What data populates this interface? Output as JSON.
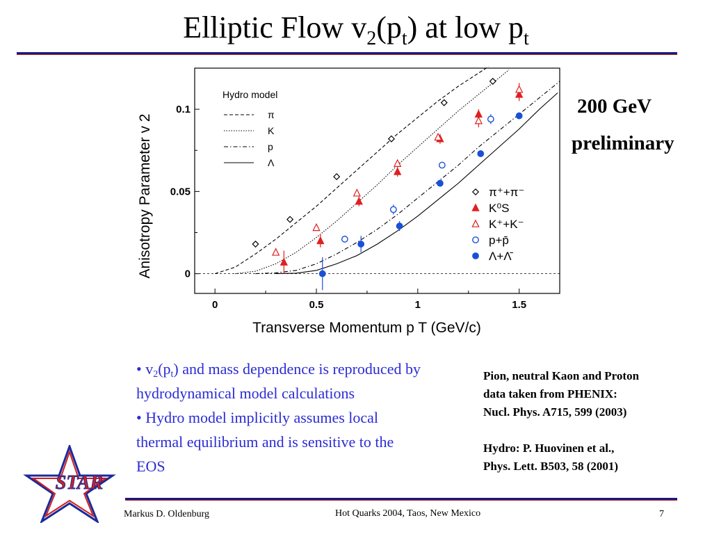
{
  "slide": {
    "title_parts": [
      "Elliptic Flow v",
      "2",
      "(p",
      "t",
      ") at low p",
      "t"
    ],
    "energy": "200 GeV",
    "status": "preliminary",
    "bullets": [
      {
        "pre": "• v",
        "sub1": "2",
        "mid": "(p",
        "sub2": "t",
        "post": ") and mass dependence is reproduced by hydrodynamical model calculations"
      },
      {
        "text": "• Hydro model implicitly assumes local thermal equilibrium and is sensitive to the EOS"
      }
    ],
    "refs": [
      "Pion, neutral Kaon and Proton",
      "data taken from PHENIX:",
      "Nucl. Phys. A715, 599 (2003)",
      "Hydro: P. Huovinen et al.,",
      "Phys. Lett. B503, 58 (2001)"
    ],
    "footer": {
      "author": "Markus D. Oldenburg",
      "event": "Hot Quarks 2004, Taos, New Mexico",
      "page": "7"
    },
    "logo_text": "STAR",
    "colors": {
      "blue_text": "#2b2bd6",
      "rule_blue": "#1a1a7a",
      "rule_red": "#c02020",
      "data_red": "#e02020",
      "data_blue": "#1a4fd8"
    }
  },
  "chart_data": {
    "type": "scatter",
    "xlabel": "Transverse Momentum p T (GeV/c)",
    "ylabel": "Anisotropy Parameter v 2",
    "xlim": [
      -0.1,
      1.7
    ],
    "ylim": [
      -0.012,
      0.125
    ],
    "x_ticks": [
      0,
      0.5,
      1,
      1.5
    ],
    "x_tick_labels": [
      "0",
      "0.5",
      "1",
      "1.5"
    ],
    "y_ticks": [
      0,
      0.05,
      0.1
    ],
    "y_tick_labels": [
      "0",
      "0.05",
      "0.1"
    ],
    "hydro_legend_title": "Hydro model",
    "hydro_curves": [
      {
        "name": "π",
        "style": "dashed",
        "x": [
          0,
          0.1,
          0.2,
          0.3,
          0.4,
          0.5,
          0.6,
          0.7,
          0.8,
          0.9,
          1.0,
          1.1,
          1.2,
          1.3,
          1.35
        ],
        "y": [
          0,
          0.004,
          0.012,
          0.021,
          0.031,
          0.041,
          0.052,
          0.063,
          0.074,
          0.085,
          0.095,
          0.105,
          0.114,
          0.122,
          0.126
        ]
      },
      {
        "name": "K",
        "style": "dotted",
        "x": [
          0.1,
          0.2,
          0.3,
          0.4,
          0.5,
          0.6,
          0.7,
          0.8,
          0.9,
          1.0,
          1.1,
          1.2,
          1.3,
          1.4,
          1.45
        ],
        "y": [
          0,
          0.0015,
          0.006,
          0.013,
          0.022,
          0.032,
          0.043,
          0.054,
          0.066,
          0.077,
          0.088,
          0.099,
          0.109,
          0.119,
          0.124
        ]
      },
      {
        "name": "p",
        "style": "dashdot",
        "x": [
          0.2,
          0.3,
          0.4,
          0.5,
          0.6,
          0.7,
          0.8,
          0.9,
          1.0,
          1.1,
          1.2,
          1.3,
          1.4,
          1.5,
          1.6,
          1.7
        ],
        "y": [
          0,
          0.0005,
          0.002,
          0.006,
          0.012,
          0.019,
          0.027,
          0.036,
          0.046,
          0.056,
          0.066,
          0.077,
          0.087,
          0.097,
          0.107,
          0.117
        ]
      },
      {
        "name": "Λ",
        "style": "solid",
        "x": [
          0.3,
          0.4,
          0.5,
          0.6,
          0.7,
          0.8,
          0.9,
          1.0,
          1.1,
          1.2,
          1.3,
          1.4,
          1.5,
          1.6,
          1.69
        ],
        "y": [
          0,
          0.0003,
          0.002,
          0.006,
          0.011,
          0.018,
          0.026,
          0.035,
          0.045,
          0.055,
          0.066,
          0.077,
          0.088,
          0.1,
          0.11
        ]
      }
    ],
    "series": [
      {
        "name": "π⁺+π⁻",
        "marker": "diamond-open",
        "color": "#000000",
        "x": [
          0.2,
          0.37,
          0.6,
          0.87,
          1.13,
          1.37
        ],
        "y": [
          0.018,
          0.033,
          0.059,
          0.082,
          0.104,
          0.117
        ],
        "err": [
          0,
          0,
          0,
          0,
          0,
          0
        ]
      },
      {
        "name": "K⁰S",
        "marker": "triangle-filled",
        "color": "#e02020",
        "x": [
          0.34,
          0.52,
          0.71,
          0.9,
          1.11,
          1.3,
          1.5
        ],
        "y": [
          0.007,
          0.02,
          0.044,
          0.062,
          0.082,
          0.097,
          0.109
        ],
        "err": [
          0.007,
          0.004,
          0.003,
          0.003,
          0.003,
          0.003,
          0.004
        ]
      },
      {
        "name": "K⁺+K⁻",
        "marker": "triangle-open",
        "color": "#e02020",
        "x": [
          0.3,
          0.5,
          0.7,
          0.9,
          1.1,
          1.3,
          1.5
        ],
        "y": [
          0.013,
          0.028,
          0.049,
          0.067,
          0.083,
          0.093,
          0.112
        ],
        "err": [
          0,
          0,
          0,
          0,
          0,
          0.004,
          0.004
        ]
      },
      {
        "name": "p+p̄",
        "marker": "circle-open",
        "color": "#1a4fd8",
        "x": [
          0.64,
          0.88,
          1.12,
          1.36
        ],
        "y": [
          0.021,
          0.039,
          0.066,
          0.094
        ],
        "err": [
          0,
          0.003,
          0,
          0.003
        ]
      },
      {
        "name": "Λ+Λ̄",
        "marker": "circle-filled",
        "color": "#1a4fd8",
        "x": [
          0.53,
          0.72,
          0.91,
          1.11,
          1.31,
          1.5
        ],
        "y": [
          0,
          0.018,
          0.029,
          0.055,
          0.073,
          0.096
        ],
        "err": [
          0.01,
          0.005,
          0.003,
          0.002,
          0.002,
          0.002
        ]
      }
    ]
  }
}
